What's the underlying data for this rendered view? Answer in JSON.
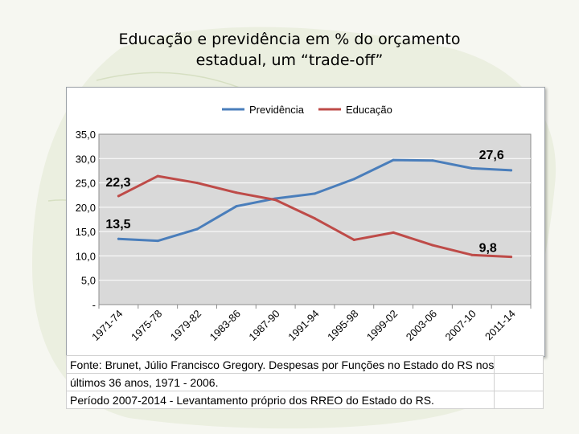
{
  "slide": {
    "title_line1": "Educação e previdência em % do orçamento",
    "title_line2": "estadual,  um “trade-off”"
  },
  "chart_data": {
    "type": "line",
    "categories": [
      "1971-74",
      "1975-78",
      "1979-82",
      "1983-86",
      "1987-90",
      "1991-94",
      "1995-98",
      "1999-02",
      "2003-06",
      "2007-10",
      "2011-14"
    ],
    "series": [
      {
        "name": "Previdência",
        "color": "#4a7ebb",
        "values": [
          13.5,
          13.1,
          15.5,
          20.2,
          21.8,
          22.8,
          25.8,
          29.7,
          29.6,
          28.0,
          27.6
        ]
      },
      {
        "name": "Educação",
        "color": "#be4b48",
        "values": [
          22.3,
          26.4,
          25.0,
          23.0,
          21.5,
          17.7,
          13.3,
          14.8,
          12.2,
          10.2,
          9.8
        ]
      }
    ],
    "y_ticks": [
      "35,0",
      "30,0",
      "25,0",
      "20,0",
      "15,0",
      "10,0",
      "5,0",
      "-"
    ],
    "ylim": [
      0,
      35
    ],
    "grid": true,
    "legend_position": "top",
    "plot_background": "#d9d9d9",
    "data_labels": [
      {
        "series": "Previdência",
        "index": 0,
        "text": "13,5"
      },
      {
        "series": "Educação",
        "index": 0,
        "text": "22,3"
      },
      {
        "series": "Previdência",
        "index": 10,
        "text": "27,6"
      },
      {
        "series": "Educação",
        "index": 10,
        "text": "9,8"
      }
    ]
  },
  "source": {
    "line1": "Fonte: Brunet, Júlio Francisco Gregory. Despesas por Funções no Estado do RS nos",
    "line2": "últimos 36 anos, 1971 - 2006.",
    "line3": "Período 2007-2014 - Levantamento próprio dos RREO do Estado do RS."
  }
}
